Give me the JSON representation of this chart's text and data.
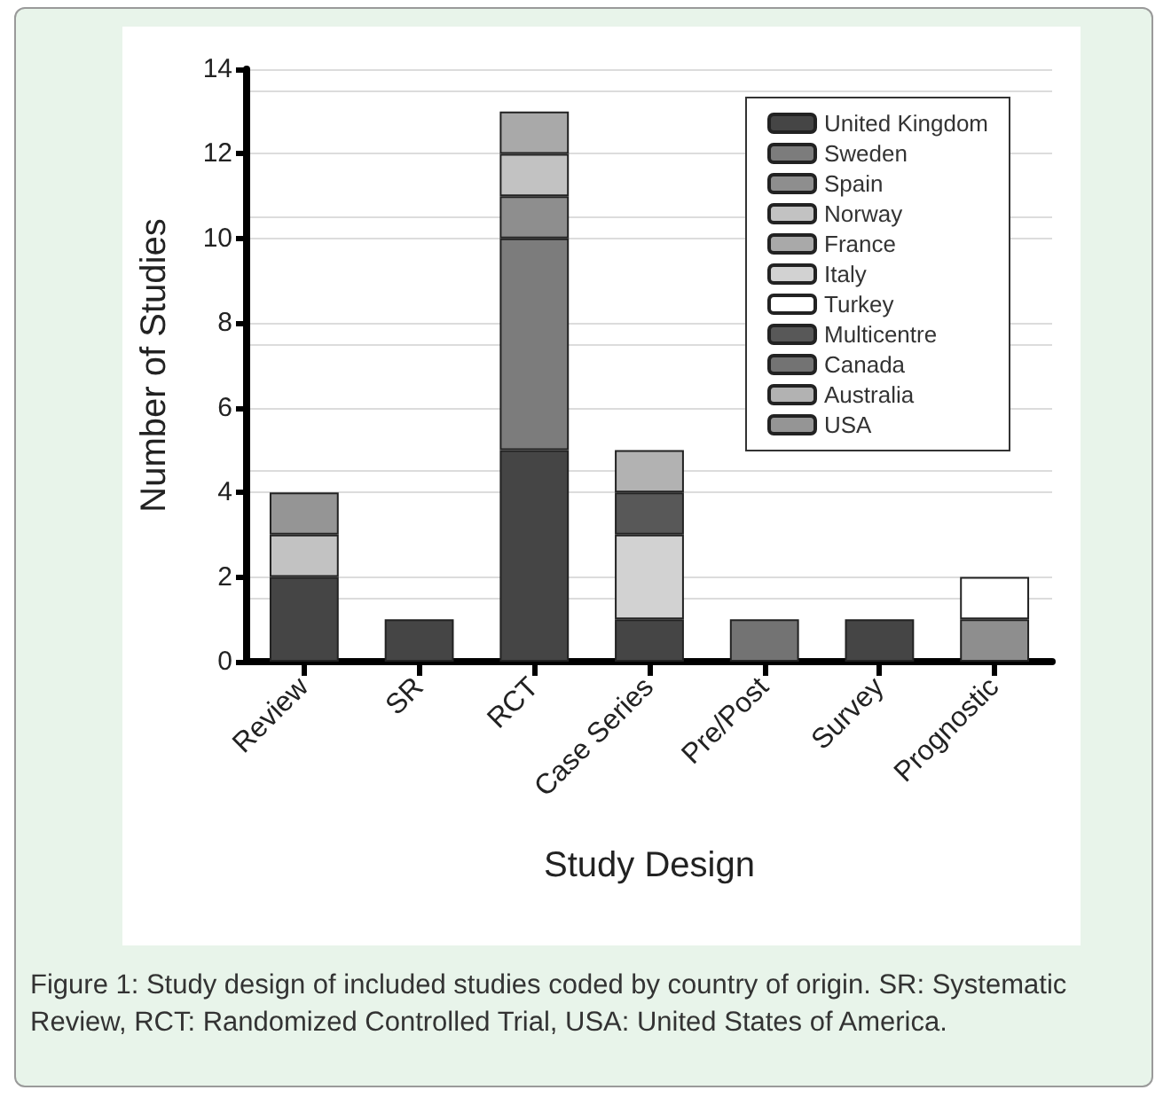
{
  "chart_data": {
    "type": "bar",
    "stacked": true,
    "xlabel": "Study Design",
    "ylabel": "Number of Studies",
    "categories": [
      "Review",
      "SR",
      "RCT",
      "Case Series",
      "Pre/Post",
      "Survey",
      "Prognostic"
    ],
    "series": [
      {
        "name": "United Kingdom",
        "color": "#454545",
        "values": [
          2,
          1,
          5,
          1,
          null,
          1,
          null
        ]
      },
      {
        "name": "Sweden",
        "color": "#7c7c7c",
        "values": [
          null,
          null,
          5,
          null,
          null,
          null,
          null
        ]
      },
      {
        "name": "Spain",
        "color": "#8e8e8e",
        "values": [
          null,
          null,
          1,
          null,
          null,
          null,
          1
        ]
      },
      {
        "name": "Norway",
        "color": "#c2c2c2",
        "values": [
          1,
          null,
          1,
          null,
          null,
          null,
          null
        ]
      },
      {
        "name": "France",
        "color": "#a9a9a9",
        "values": [
          null,
          null,
          1,
          null,
          null,
          null,
          null
        ]
      },
      {
        "name": "Italy",
        "color": "#d2d2d2",
        "values": [
          null,
          null,
          null,
          2,
          null,
          null,
          null
        ]
      },
      {
        "name": "Turkey",
        "color": "#ffffff",
        "values": [
          null,
          null,
          null,
          null,
          null,
          null,
          1
        ]
      },
      {
        "name": "Multicentre",
        "color": "#585858",
        "values": [
          null,
          null,
          null,
          1,
          null,
          null,
          null
        ]
      },
      {
        "name": "Canada",
        "color": "#737373",
        "values": [
          null,
          null,
          null,
          null,
          1,
          null,
          null
        ]
      },
      {
        "name": "Australia",
        "color": "#b2b2b2",
        "values": [
          null,
          null,
          null,
          1,
          null,
          null,
          null
        ]
      },
      {
        "name": "USA",
        "color": "#959595",
        "values": [
          1,
          null,
          null,
          null,
          null,
          null,
          null
        ]
      }
    ],
    "ylim": [
      0,
      14
    ],
    "yticks": [
      0,
      2,
      4,
      6,
      8,
      10,
      12,
      14
    ],
    "grid": "y",
    "legend": "top right",
    "annotations": [
      "Figure 1: Study design of included studies coded by country of origin. SR: Systematic Review, RCT: Randomized Controlled Trial, USA: United States of America."
    ]
  }
}
